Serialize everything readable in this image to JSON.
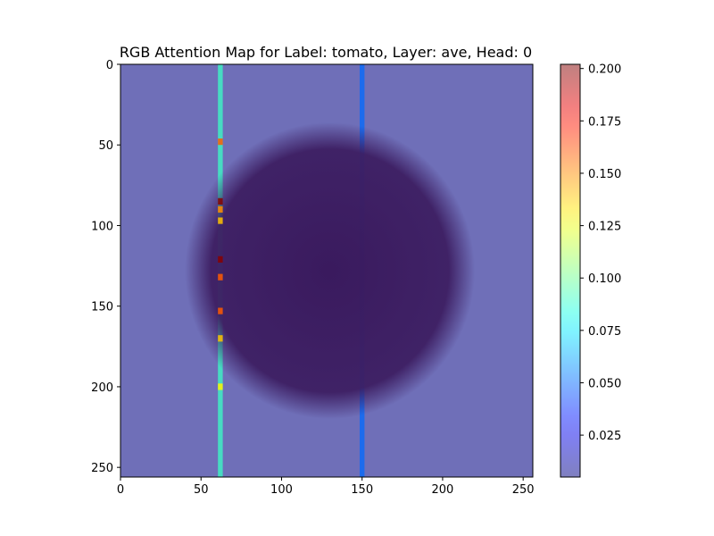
{
  "chart_data": {
    "type": "heatmap",
    "title": "RGB Attention Map for Label: tomato, Layer: ave, Head: 0",
    "xlabel": "",
    "ylabel": "",
    "xlim": [
      0,
      256
    ],
    "ylim": [
      256,
      0
    ],
    "x_ticks": [
      0,
      50,
      100,
      150,
      200,
      250
    ],
    "y_ticks": [
      0,
      50,
      100,
      150,
      200,
      250
    ],
    "x_tick_labels": [
      "0",
      "50",
      "100",
      "150",
      "200",
      "250"
    ],
    "y_tick_labels": [
      "0",
      "50",
      "100",
      "150",
      "200",
      "250"
    ],
    "colorbar": {
      "range": [
        0.005,
        0.202
      ],
      "ticks": [
        0.025,
        0.05,
        0.075,
        0.1,
        0.125,
        0.15,
        0.175,
        0.2
      ],
      "tick_labels": [
        "0.025",
        "0.050",
        "0.075",
        "0.100",
        "0.125",
        "0.150",
        "0.175",
        "0.200"
      ],
      "colormap": "jet",
      "alpha": 0.5
    },
    "background_image": {
      "subject": "tomato",
      "center": [
        130,
        128
      ],
      "radius_x": 90,
      "radius_y": 92,
      "object_color": "#3a1a5e",
      "backdrop_color": "#6f6fb8"
    },
    "attention": {
      "base_value": 0.022,
      "column_peaks": [
        {
          "x": 62,
          "width": 3,
          "value": 0.09
        },
        {
          "x": 150,
          "width": 3,
          "value": 0.05
        }
      ],
      "hotspots_x": 62,
      "hotspots": [
        {
          "y": 48,
          "value": 0.16
        },
        {
          "y": 85,
          "value": 0.2
        },
        {
          "y": 90,
          "value": 0.15
        },
        {
          "y": 97,
          "value": 0.14
        },
        {
          "y": 121,
          "value": 0.2
        },
        {
          "y": 132,
          "value": 0.16
        },
        {
          "y": 153,
          "value": 0.16
        },
        {
          "y": 170,
          "value": 0.14
        },
        {
          "y": 200,
          "value": 0.13
        }
      ]
    }
  }
}
